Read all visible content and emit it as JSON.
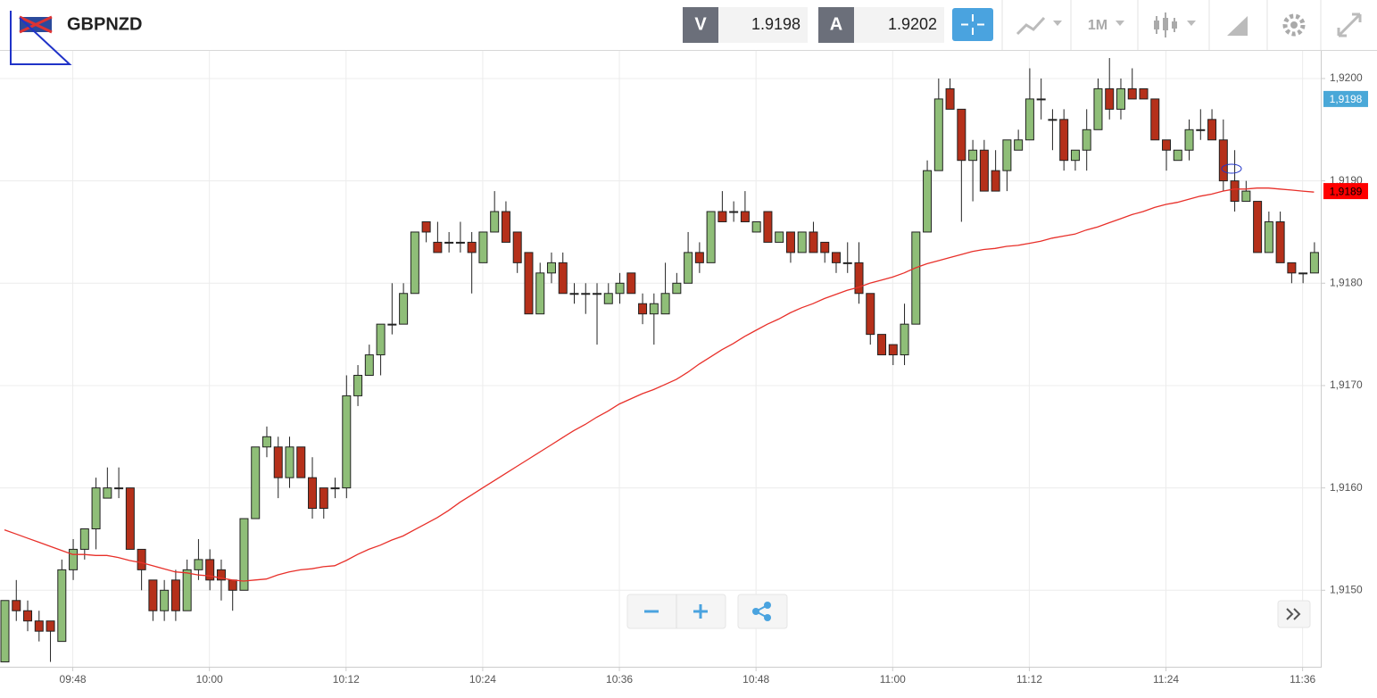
{
  "header": {
    "symbol": "GBPNZD",
    "bid_letter": "V",
    "bid": "1.9198",
    "ask_letter": "A",
    "ask": "1.9202",
    "timeframe": "1M"
  },
  "chart_data": {
    "type": "candlestick",
    "categories": [
      null,
      null,
      null,
      null,
      null,
      null,
      "09:48",
      null,
      null,
      null,
      null,
      null,
      null,
      null,
      null,
      null,
      null,
      null,
      "10:00",
      null,
      null,
      null,
      null,
      null,
      null,
      null,
      null,
      null,
      null,
      null,
      "10:12",
      null,
      null,
      null,
      null,
      null,
      null,
      null,
      null,
      null,
      null,
      null,
      "10:24",
      null,
      null,
      null,
      null,
      null,
      null,
      null,
      null,
      null,
      null,
      null,
      "10:36",
      null,
      null,
      null,
      null,
      null,
      null,
      null,
      null,
      null,
      null,
      null,
      "10:48",
      null,
      null,
      null,
      null,
      null,
      null,
      null,
      null,
      null,
      null,
      null,
      "11:00",
      null,
      null,
      null,
      null,
      null,
      null,
      null,
      null,
      null,
      null,
      null,
      "11:12",
      null,
      null,
      null,
      null,
      null,
      null,
      null,
      null,
      null,
      null,
      null,
      "11:24",
      null,
      null,
      null,
      null,
      null,
      null,
      null,
      null,
      null,
      null,
      null,
      "11:36",
      null
    ],
    "open": [
      1.9143,
      1.9149,
      1.9148,
      1.9147,
      1.9147,
      1.9145,
      1.9152,
      1.9154,
      1.9156,
      1.9159,
      1.916,
      1.916,
      1.9154,
      1.9151,
      1.9148,
      1.9151,
      1.9148,
      1.9152,
      1.9153,
      1.9152,
      1.9151,
      1.915,
      1.9157,
      1.9164,
      1.9164,
      1.9161,
      1.9164,
      1.9161,
      1.916,
      1.916,
      1.916,
      1.9169,
      1.9171,
      1.9173,
      1.9176,
      1.9176,
      1.9179,
      1.9186,
      1.9184,
      1.9184,
      1.9184,
      1.9184,
      1.9182,
      1.9185,
      1.9187,
      1.9185,
      1.9183,
      1.9177,
      1.9181,
      1.9182,
      1.9179,
      1.9179,
      1.9179,
      1.9178,
      1.9179,
      1.9181,
      1.9178,
      1.9177,
      1.9177,
      1.9179,
      1.918,
      1.9183,
      1.9182,
      1.9187,
      1.9187,
      1.9187,
      1.9185,
      1.9187,
      1.9184,
      1.9185,
      1.9183,
      1.9185,
      1.9184,
      1.9183,
      1.9182,
      1.9182,
      1.9179,
      1.9175,
      1.9174,
      1.9173,
      1.9176,
      1.9185,
      1.9191,
      1.9199,
      1.9197,
      1.9192,
      1.9193,
      1.9191,
      1.9191,
      1.9193,
      1.9194,
      1.9198,
      1.9196,
      1.9196,
      1.9192,
      1.9193,
      1.9195,
      1.9199,
      1.9197,
      1.9199,
      1.9199,
      1.9198,
      1.9194,
      1.9192,
      1.9193,
      1.9195,
      1.9196,
      1.9194,
      1.919,
      1.9188,
      1.9188,
      1.9183,
      1.9186,
      1.9182,
      1.9181,
      1.9181
    ],
    "high": [
      1.9149,
      1.9151,
      1.9149,
      1.9148,
      1.9147,
      1.9153,
      1.9155,
      1.9156,
      1.9161,
      1.9162,
      1.9162,
      1.916,
      1.9154,
      1.9151,
      1.9151,
      1.9152,
      1.9153,
      1.9155,
      1.9154,
      1.9153,
      1.9151,
      1.9157,
      1.9164,
      1.9166,
      1.9165,
      1.9165,
      1.9164,
      1.9163,
      1.916,
      1.9161,
      1.9171,
      1.9172,
      1.9174,
      1.9176,
      1.918,
      1.918,
      1.9185,
      1.9186,
      1.9186,
      1.9185,
      1.9186,
      1.9185,
      1.9185,
      1.9189,
      1.9188,
      1.9185,
      1.9183,
      1.9182,
      1.9183,
      1.9183,
      1.918,
      1.918,
      1.918,
      1.918,
      1.9181,
      1.9181,
      1.9179,
      1.9179,
      1.9182,
      1.9181,
      1.9185,
      1.9184,
      1.9187,
      1.9189,
      1.9188,
      1.9189,
      1.9186,
      1.9187,
      1.9185,
      1.9185,
      1.9185,
      1.9186,
      1.9184,
      1.9183,
      1.9184,
      1.9184,
      1.9179,
      1.9175,
      1.9174,
      1.9178,
      1.9185,
      1.9192,
      1.92,
      1.92,
      1.9197,
      1.9194,
      1.9194,
      1.9193,
      1.9194,
      1.9195,
      1.9201,
      1.92,
      1.9197,
      1.9197,
      1.9193,
      1.9197,
      1.92,
      1.9202,
      1.92,
      1.9201,
      1.9199,
      1.9198,
      1.9194,
      1.9193,
      1.9196,
      1.9197,
      1.9197,
      1.9196,
      1.9193,
      1.919,
      1.9188,
      1.9187,
      1.9187,
      1.9182,
      1.9181,
      1.9184
    ],
    "low": [
      1.9143,
      1.9147,
      1.9146,
      1.9145,
      1.9143,
      1.9145,
      1.9151,
      1.9153,
      1.9154,
      1.9159,
      1.9159,
      1.9154,
      1.915,
      1.9147,
      1.9147,
      1.9147,
      1.9148,
      1.9151,
      1.915,
      1.9149,
      1.9148,
      1.915,
      1.9157,
      1.9163,
      1.9159,
      1.916,
      1.9161,
      1.9157,
      1.9157,
      1.9159,
      1.9159,
      1.9168,
      1.9171,
      1.9171,
      1.9175,
      1.9176,
      1.9179,
      1.9184,
      1.9183,
      1.9183,
      1.9183,
      1.9179,
      1.9182,
      1.9185,
      1.9184,
      1.9181,
      1.9177,
      1.9177,
      1.918,
      1.9179,
      1.9178,
      1.9177,
      1.9174,
      1.9178,
      1.9178,
      1.9179,
      1.9176,
      1.9174,
      1.9177,
      1.9179,
      1.918,
      1.9181,
      1.9182,
      1.9186,
      1.9186,
      1.9186,
      1.9185,
      1.9184,
      1.9184,
      1.9182,
      1.9183,
      1.9183,
      1.9182,
      1.9181,
      1.9181,
      1.9178,
      1.9174,
      1.9173,
      1.9172,
      1.9172,
      1.9176,
      1.9185,
      1.9191,
      1.9197,
      1.9186,
      1.9188,
      1.9189,
      1.9189,
      1.9189,
      1.9193,
      1.9194,
      1.9196,
      1.9193,
      1.9191,
      1.9191,
      1.9191,
      1.9195,
      1.9196,
      1.9196,
      1.9198,
      1.9198,
      1.9194,
      1.9191,
      1.9192,
      1.9192,
      1.9194,
      1.9194,
      1.9189,
      1.9187,
      1.9188,
      1.9183,
      1.9183,
      1.9182,
      1.918,
      1.918,
      1.9181
    ],
    "close": [
      1.9149,
      1.9148,
      1.9147,
      1.9146,
      1.9146,
      1.9152,
      1.9154,
      1.9156,
      1.916,
      1.916,
      1.916,
      1.9154,
      1.9152,
      1.9148,
      1.915,
      1.9148,
      1.9152,
      1.9153,
      1.9151,
      1.9151,
      1.915,
      1.9157,
      1.9164,
      1.9165,
      1.9161,
      1.9164,
      1.9161,
      1.9158,
      1.9158,
      1.916,
      1.9169,
      1.9171,
      1.9173,
      1.9176,
      1.9176,
      1.9179,
      1.9185,
      1.9185,
      1.9183,
      1.9184,
      1.9184,
      1.9183,
      1.9185,
      1.9187,
      1.9184,
      1.9182,
      1.9177,
      1.9181,
      1.9182,
      1.9179,
      1.9179,
      1.9179,
      1.9179,
      1.9179,
      1.918,
      1.9179,
      1.9177,
      1.9178,
      1.9179,
      1.918,
      1.9183,
      1.9182,
      1.9187,
      1.9186,
      1.9187,
      1.9186,
      1.9186,
      1.9184,
      1.9185,
      1.9183,
      1.9185,
      1.9183,
      1.9183,
      1.9182,
      1.9182,
      1.9179,
      1.9175,
      1.9173,
      1.9173,
      1.9176,
      1.9185,
      1.9191,
      1.9198,
      1.9197,
      1.9192,
      1.9193,
      1.9189,
      1.9189,
      1.9194,
      1.9194,
      1.9198,
      1.9198,
      1.9196,
      1.9192,
      1.9193,
      1.9195,
      1.9199,
      1.9197,
      1.9199,
      1.9198,
      1.9198,
      1.9194,
      1.9193,
      1.9193,
      1.9195,
      1.9195,
      1.9194,
      1.919,
      1.9188,
      1.9189,
      1.9183,
      1.9186,
      1.9182,
      1.9181,
      1.9181,
      1.9183
    ],
    "up_color": "#8fbe78",
    "down_color": "#b5301a",
    "ma": {
      "color": "#e8302a",
      "values": [
        1.91559,
        1.91555,
        1.91551,
        1.91547,
        1.91543,
        1.91539,
        1.91535,
        1.91535,
        1.91534,
        1.91534,
        1.91532,
        1.91529,
        1.91527,
        1.91524,
        1.91521,
        1.91518,
        1.91517,
        1.91515,
        1.91514,
        1.91512,
        1.9151,
        1.91509,
        1.9151,
        1.91511,
        1.91515,
        1.91518,
        1.9152,
        1.91521,
        1.91523,
        1.91524,
        1.91529,
        1.91535,
        1.9154,
        1.91544,
        1.91549,
        1.91553,
        1.91559,
        1.91565,
        1.91571,
        1.91578,
        1.91586,
        1.91593,
        1.916,
        1.91607,
        1.91614,
        1.91621,
        1.91628,
        1.91635,
        1.91642,
        1.91649,
        1.91656,
        1.91662,
        1.91669,
        1.91675,
        1.91682,
        1.91687,
        1.91692,
        1.91696,
        1.91701,
        1.91706,
        1.91713,
        1.91721,
        1.91728,
        1.91735,
        1.91741,
        1.91748,
        1.91754,
        1.9176,
        1.91765,
        1.91771,
        1.91776,
        1.9178,
        1.91785,
        1.91789,
        1.91793,
        1.91796,
        1.918,
        1.91803,
        1.91806,
        1.9181,
        1.91815,
        1.91819,
        1.91822,
        1.91825,
        1.91828,
        1.91831,
        1.91833,
        1.91834,
        1.91836,
        1.91837,
        1.91839,
        1.91841,
        1.91844,
        1.91846,
        1.91848,
        1.91852,
        1.91855,
        1.91859,
        1.91863,
        1.91867,
        1.9187,
        1.91874,
        1.91877,
        1.91879,
        1.91882,
        1.91885,
        1.91887,
        1.9189,
        1.91892,
        1.91892,
        1.91893,
        1.91893,
        1.91892,
        1.91891,
        1.9189,
        1.91889
      ]
    },
    "bid_marker": {
      "value": 1.9198,
      "label": "1,9198",
      "color": "#4aa8d8"
    },
    "ma_marker": {
      "value": 1.9189,
      "label": "1,9189",
      "color": "#ff0000"
    },
    "ylim": [
      1.91427,
      1.92027
    ],
    "yticks": [
      {
        "value": 1.915,
        "label": "1,9150"
      },
      {
        "value": 1.916,
        "label": "1,9160"
      },
      {
        "value": 1.917,
        "label": "1,9170"
      },
      {
        "value": 1.918,
        "label": "1,9180"
      },
      {
        "value": 1.919,
        "label": "1,9190"
      },
      {
        "value": 1.92,
        "label": "1,9200"
      }
    ],
    "grid": true
  }
}
